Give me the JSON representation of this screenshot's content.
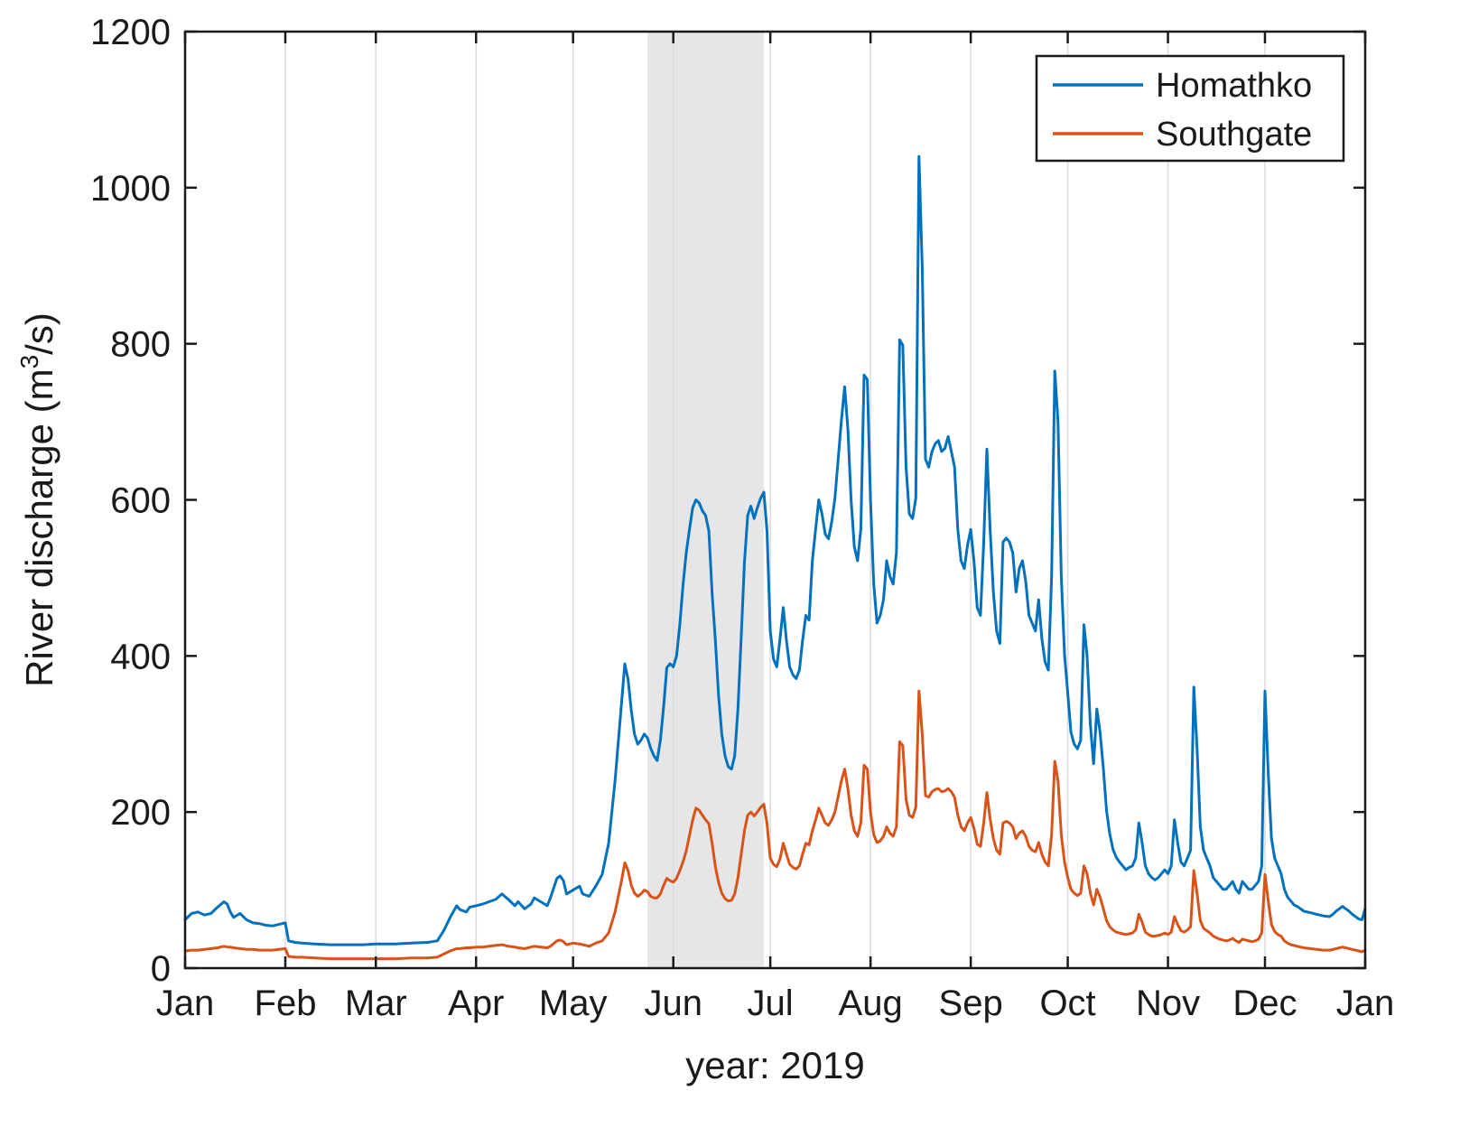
{
  "chart_data": {
    "type": "line",
    "title": "",
    "xlabel": "year: 2019",
    "ylabel": {
      "pre": "River discharge (m",
      "sup": "3",
      "post": "/s)"
    },
    "ylim": [
      0,
      1200
    ],
    "x_range_days": [
      0,
      365
    ],
    "y_ticks": [
      0,
      200,
      400,
      600,
      800,
      1000,
      1200
    ],
    "x_ticks": [
      {
        "label": "Jan",
        "day": 0
      },
      {
        "label": "Feb",
        "day": 31
      },
      {
        "label": "Mar",
        "day": 59
      },
      {
        "label": "Apr",
        "day": 90
      },
      {
        "label": "May",
        "day": 120
      },
      {
        "label": "Jun",
        "day": 151
      },
      {
        "label": "Jul",
        "day": 181
      },
      {
        "label": "Aug",
        "day": 212
      },
      {
        "label": "Sep",
        "day": 243
      },
      {
        "label": "Oct",
        "day": 273
      },
      {
        "label": "Nov",
        "day": 304
      },
      {
        "label": "Dec",
        "day": 334
      },
      {
        "label": "Jan",
        "day": 365
      }
    ],
    "shaded_region_days": [
      143,
      179
    ],
    "grid": "vertical-only",
    "legend": {
      "position": "top-right",
      "entries": [
        {
          "label": "Homathko",
          "color": "#0072BD"
        },
        {
          "label": "Southgate",
          "color": "#D95319"
        }
      ]
    },
    "colors": {
      "axis": "#1a1a1a",
      "grid": "#dcdcdc",
      "shaded": "#e6e6e6",
      "background": "#ffffff",
      "homathko": "#0072BD",
      "southgate": "#D95319"
    },
    "x_days": [
      0,
      2,
      4,
      6,
      8,
      10,
      12,
      13,
      14,
      15,
      17,
      19,
      21,
      23,
      25,
      27,
      29,
      31,
      32,
      34,
      36,
      40,
      45,
      50,
      55,
      59,
      65,
      70,
      75,
      78,
      80,
      82,
      84,
      85,
      87,
      88,
      90,
      92,
      94,
      96,
      98,
      100,
      102,
      103,
      105,
      107,
      108,
      110,
      112,
      113,
      115,
      116,
      117,
      118,
      120,
      122,
      123,
      125,
      127,
      129,
      131,
      133,
      135,
      136,
      137,
      138,
      139,
      140,
      141,
      142,
      143,
      144,
      145,
      146,
      147,
      148,
      149,
      150,
      151,
      152,
      153,
      154,
      155,
      156,
      157,
      158,
      159,
      160,
      161,
      162,
      163,
      164,
      165,
      166,
      167,
      168,
      169,
      170,
      171,
      172,
      173,
      174,
      175,
      176,
      177,
      178,
      179,
      180,
      181,
      182,
      183,
      184,
      185,
      186,
      187,
      188,
      189,
      190,
      191,
      192,
      193,
      194,
      195,
      196,
      197,
      198,
      199,
      200,
      201,
      202,
      203,
      204,
      205,
      206,
      207,
      208,
      209,
      210,
      211,
      212,
      213,
      214,
      215,
      216,
      217,
      218,
      219,
      220,
      221,
      222,
      223,
      224,
      225,
      226,
      227,
      228,
      229,
      230,
      231,
      232,
      233,
      234,
      235,
      236,
      237,
      238,
      239,
      240,
      241,
      242,
      243,
      244,
      245,
      246,
      247,
      248,
      249,
      250,
      251,
      252,
      253,
      254,
      255,
      256,
      257,
      258,
      259,
      260,
      261,
      262,
      263,
      264,
      265,
      266,
      267,
      268,
      269,
      270,
      271,
      272,
      273,
      274,
      275,
      276,
      277,
      278,
      279,
      280,
      281,
      282,
      283,
      284,
      285,
      286,
      287,
      288,
      289,
      290,
      291,
      292,
      293,
      294,
      295,
      296,
      297,
      298,
      299,
      300,
      301,
      302,
      303,
      304,
      305,
      306,
      307,
      308,
      309,
      310,
      311,
      312,
      313,
      314,
      315,
      316,
      317,
      318,
      319,
      320,
      321,
      322,
      323,
      324,
      325,
      326,
      327,
      328,
      329,
      330,
      331,
      332,
      333,
      334,
      335,
      336,
      337,
      338,
      339,
      340,
      341,
      342,
      343,
      344,
      345,
      346,
      348,
      350,
      352,
      354,
      355,
      356,
      357,
      358,
      359,
      360,
      361,
      362,
      363,
      364,
      365
    ],
    "series": [
      {
        "name": "Homathko",
        "color": "#0072BD",
        "values": [
          62,
          70,
          72,
          68,
          70,
          78,
          85,
          82,
          72,
          65,
          70,
          62,
          58,
          57,
          55,
          54,
          56,
          58,
          35,
          33,
          32,
          31,
          30,
          30,
          30,
          31,
          31,
          32,
          33,
          35,
          48,
          65,
          80,
          75,
          72,
          78,
          80,
          82,
          85,
          88,
          95,
          88,
          80,
          85,
          76,
          82,
          90,
          85,
          80,
          90,
          115,
          118,
          112,
          95,
          100,
          105,
          95,
          92,
          105,
          120,
          160,
          240,
          340,
          390,
          370,
          330,
          300,
          287,
          292,
          300,
          295,
          282,
          272,
          266,
          292,
          335,
          385,
          390,
          386,
          400,
          440,
          490,
          532,
          562,
          590,
          600,
          596,
          586,
          580,
          560,
          480,
          420,
          350,
          300,
          272,
          258,
          255,
          272,
          332,
          424,
          520,
          580,
          592,
          576,
          590,
          602,
          610,
          560,
          432,
          396,
          386,
          422,
          462,
          420,
          386,
          376,
          371,
          382,
          420,
          452,
          446,
          522,
          562,
          600,
          582,
          556,
          550,
          572,
          602,
          652,
          702,
          745,
          690,
          600,
          540,
          522,
          562,
          760,
          754,
          600,
          492,
          442,
          452,
          472,
          522,
          502,
          492,
          532,
          805,
          798,
          642,
          582,
          576,
          602,
          1040,
          898,
          652,
          642,
          662,
          672,
          676,
          662,
          666,
          681,
          662,
          642,
          562,
          522,
          512,
          542,
          562,
          522,
          462,
          452,
          546,
          665,
          562,
          482,
          432,
          416,
          546,
          551,
          546,
          532,
          482,
          512,
          522,
          496,
          452,
          442,
          432,
          472,
          422,
          392,
          382,
          502,
          765,
          700,
          502,
          402,
          352,
          302,
          287,
          281,
          292,
          440,
          400,
          312,
          262,
          332,
          302,
          256,
          202,
          172,
          152,
          142,
          136,
          131,
          126,
          129,
          131,
          141,
          186,
          161,
          131,
          121,
          116,
          113,
          116,
          121,
          126,
          121,
          131,
          190,
          161,
          136,
          131,
          141,
          151,
          360,
          281,
          181,
          151,
          141,
          131,
          116,
          111,
          106,
          101,
          101,
          106,
          111,
          101,
          96,
          111,
          106,
          101,
          101,
          106,
          111,
          131,
          355,
          251,
          166,
          141,
          131,
          121,
          101,
          91,
          86,
          81,
          79,
          76,
          73,
          71,
          69,
          67,
          66,
          69,
          73,
          76,
          79,
          76,
          73,
          69,
          66,
          63,
          62,
          76
        ]
      },
      {
        "name": "Southgate",
        "color": "#D95319",
        "values": [
          22,
          23,
          23,
          24,
          25,
          26,
          28,
          27,
          27,
          26,
          25,
          24,
          24,
          23,
          23,
          23,
          24,
          25,
          15,
          14,
          14,
          13,
          12,
          12,
          12,
          12,
          12,
          13,
          13,
          14,
          18,
          22,
          25,
          25,
          26,
          26,
          27,
          27,
          28,
          29,
          30,
          28,
          27,
          26,
          25,
          27,
          28,
          27,
          26,
          28,
          35,
          36,
          34,
          30,
          32,
          31,
          30,
          28,
          32,
          35,
          45,
          72,
          112,
          135,
          125,
          106,
          96,
          92,
          95,
          100,
          98,
          92,
          90,
          90,
          95,
          106,
          115,
          112,
          110,
          115,
          125,
          136,
          150,
          170,
          190,
          205,
          202,
          196,
          190,
          185,
          160,
          130,
          110,
          96,
          89,
          86,
          87,
          95,
          116,
          146,
          176,
          196,
          200,
          195,
          200,
          206,
          210,
          185,
          141,
          133,
          130,
          140,
          160,
          146,
          133,
          129,
          127,
          131,
          146,
          160,
          158,
          176,
          190,
          205,
          196,
          186,
          183,
          190,
          200,
          220,
          240,
          255,
          230,
          196,
          176,
          169,
          186,
          260,
          255,
          200,
          171,
          161,
          163,
          169,
          181,
          173,
          169,
          181,
          290,
          285,
          216,
          196,
          193,
          206,
          355,
          300,
          221,
          219,
          226,
          229,
          230,
          226,
          227,
          230,
          226,
          219,
          196,
          181,
          176,
          186,
          193,
          179,
          159,
          156,
          186,
          225,
          191,
          166,
          151,
          146,
          186,
          188,
          186,
          181,
          166,
          173,
          176,
          169,
          156,
          151,
          149,
          161,
          146,
          136,
          131,
          171,
          265,
          240,
          171,
          136,
          116,
          101,
          96,
          93,
          96,
          131,
          121,
          96,
          81,
          101,
          91,
          76,
          61,
          53,
          49,
          46,
          45,
          44,
          43,
          44,
          45,
          49,
          69,
          59,
          46,
          43,
          41,
          41,
          42,
          43,
          45,
          43,
          46,
          66,
          56,
          48,
          46,
          49,
          53,
          125,
          96,
          61,
          51,
          48,
          45,
          41,
          39,
          37,
          36,
          35,
          36,
          38,
          35,
          33,
          37,
          36,
          35,
          34,
          35,
          37,
          45,
          120,
          86,
          56,
          47,
          43,
          41,
          35,
          32,
          30,
          29,
          28,
          27,
          26,
          25,
          24,
          23,
          23,
          24,
          25,
          26,
          27,
          26,
          25,
          24,
          23,
          22,
          21,
          23
        ]
      }
    ]
  }
}
